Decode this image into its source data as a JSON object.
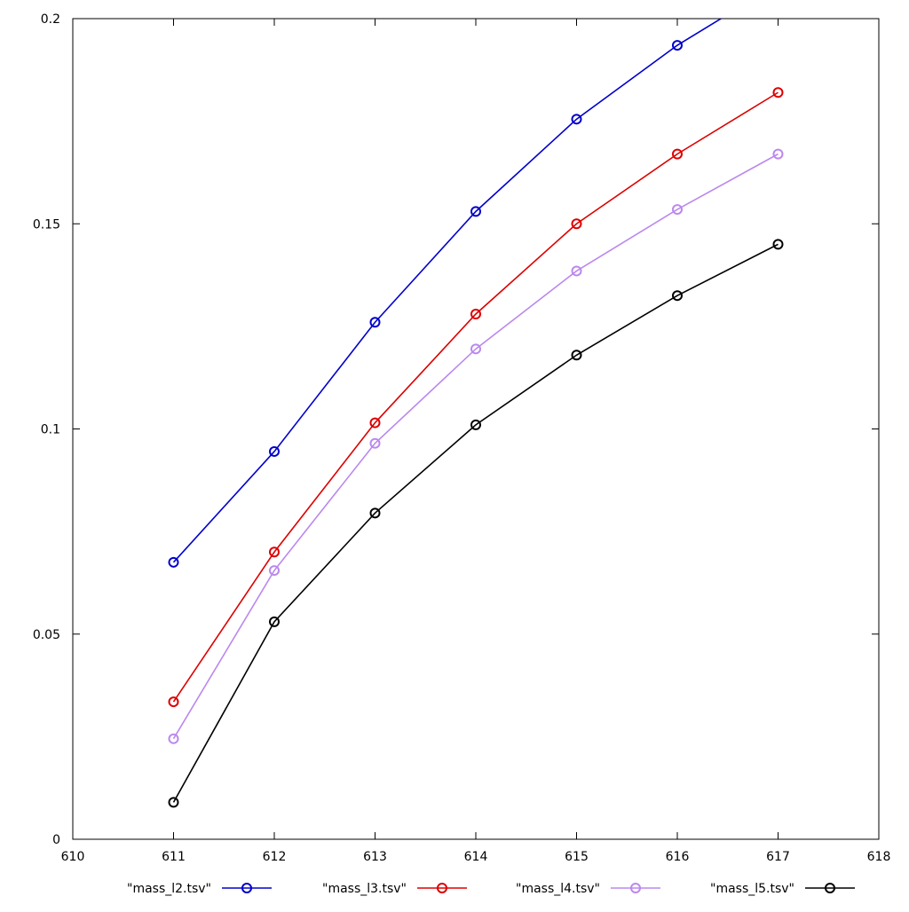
{
  "chart_data": {
    "type": "line",
    "title": "",
    "xlabel": "",
    "ylabel": "",
    "xlim": [
      610,
      618
    ],
    "ylim": [
      0,
      0.2
    ],
    "xticks": [
      {
        "value": 610,
        "label": "610"
      },
      {
        "value": 611,
        "label": "611"
      },
      {
        "value": 612,
        "label": "612"
      },
      {
        "value": 613,
        "label": "613"
      },
      {
        "value": 614,
        "label": "614"
      },
      {
        "value": 615,
        "label": "615"
      },
      {
        "value": 616,
        "label": "616"
      },
      {
        "value": 617,
        "label": "617"
      },
      {
        "value": 618,
        "label": "618"
      }
    ],
    "yticks": [
      {
        "value": 0,
        "label": "0"
      },
      {
        "value": 0.05,
        "label": "0.05"
      },
      {
        "value": 0.1,
        "label": "0.1"
      },
      {
        "value": 0.15,
        "label": "0.15"
      },
      {
        "value": 0.2,
        "label": "0.2"
      }
    ],
    "grid": false,
    "legend_position": "bottom",
    "marker": "circle-open",
    "series": [
      {
        "name": "\"mass_l2.tsv\"",
        "color": "#0000cc",
        "x": [
          611,
          612,
          613,
          614,
          615,
          616,
          617
        ],
        "y": [
          0.0675,
          0.0945,
          0.126,
          0.153,
          0.1755,
          0.1935,
          0.2085
        ]
      },
      {
        "name": "\"mass_l3.tsv\"",
        "color": "#dd0000",
        "x": [
          611,
          612,
          613,
          614,
          615,
          616,
          617
        ],
        "y": [
          0.0335,
          0.07,
          0.1015,
          0.128,
          0.15,
          0.167,
          0.182
        ]
      },
      {
        "name": "\"mass_l4.tsv\"",
        "color": "#bb88ee",
        "x": [
          611,
          612,
          613,
          614,
          615,
          616,
          617
        ],
        "y": [
          0.0245,
          0.0655,
          0.0965,
          0.1195,
          0.1385,
          0.1535,
          0.167
        ]
      },
      {
        "name": "\"mass_l5.tsv\"",
        "color": "#000000",
        "x": [
          611,
          612,
          613,
          614,
          615,
          616,
          617
        ],
        "y": [
          0.009,
          0.053,
          0.0795,
          0.101,
          0.118,
          0.1325,
          0.145
        ]
      }
    ]
  }
}
